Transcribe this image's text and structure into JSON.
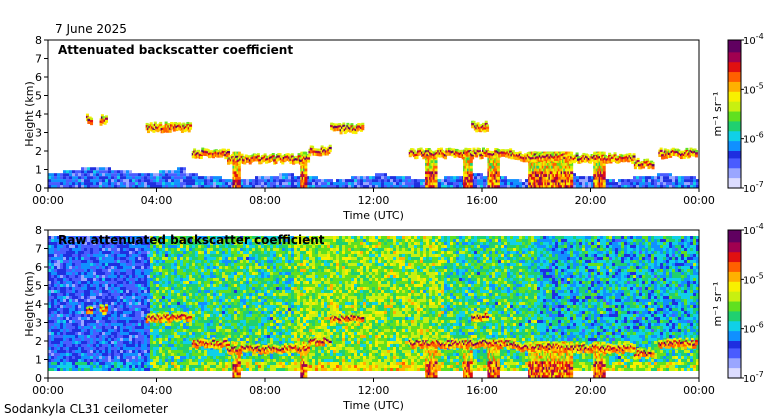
{
  "header": {
    "date": "7 June 2025"
  },
  "footer": {
    "instrument": "Sodankyla CL31 ceilometer"
  },
  "chart_data": [
    {
      "type": "heatmap",
      "title": "Attenuated backscatter coefficient",
      "xlabel": "Time (UTC)",
      "ylabel": "Height (km)",
      "x_ticks": [
        "00:00",
        "04:00",
        "08:00",
        "12:00",
        "16:00",
        "20:00",
        "00:00"
      ],
      "y_ticks": [
        "0",
        "1",
        "2",
        "3",
        "4",
        "5",
        "6",
        "7",
        "8"
      ],
      "xlim": [
        0,
        24
      ],
      "ylim": [
        0,
        8
      ],
      "colorbar": {
        "label": "m⁻¹ sr⁻¹",
        "scale": "log",
        "ticks": [
          {
            "base": "10",
            "exp": "-4"
          },
          {
            "base": "10",
            "exp": "-5"
          },
          {
            "base": "10",
            "exp": "-6"
          },
          {
            "base": "10",
            "exp": "-7"
          }
        ]
      },
      "cloud_layers": [
        {
          "t0": 1.4,
          "t1": 1.6,
          "h": 3.8
        },
        {
          "t0": 1.9,
          "t1": 2.1,
          "h": 3.75
        },
        {
          "t0": 3.6,
          "t1": 5.2,
          "h": 3.35
        },
        {
          "t0": 5.3,
          "t1": 6.6,
          "h": 1.95
        },
        {
          "t0": 6.6,
          "t1": 9.6,
          "h": 1.65
        },
        {
          "t0": 9.6,
          "t1": 10.4,
          "h": 2.1
        },
        {
          "t0": 10.4,
          "t1": 11.6,
          "h": 3.3
        },
        {
          "t0": 13.3,
          "t1": 17.2,
          "h": 1.95
        },
        {
          "t0": 15.6,
          "t1": 16.2,
          "h": 3.4
        },
        {
          "t0": 17.2,
          "t1": 19.2,
          "h": 1.75
        },
        {
          "t0": 19.2,
          "t1": 21.6,
          "h": 1.7
        },
        {
          "t0": 21.6,
          "t1": 22.3,
          "h": 1.4
        },
        {
          "t0": 22.5,
          "t1": 23.9,
          "h": 1.95
        }
      ],
      "precipitation_shafts": [
        {
          "t0": 6.8,
          "t1": 7.0
        },
        {
          "t0": 9.3,
          "t1": 9.5
        },
        {
          "t0": 13.9,
          "t1": 14.3
        },
        {
          "t0": 15.3,
          "t1": 15.6
        },
        {
          "t0": 16.2,
          "t1": 16.6
        },
        {
          "t0": 17.7,
          "t1": 19.3
        },
        {
          "t0": 20.1,
          "t1": 20.5
        }
      ]
    },
    {
      "type": "heatmap",
      "title": "Raw attenuated backscatter coefficient",
      "xlabel": "Time (UTC)",
      "ylabel": "Height (km)",
      "x_ticks": [
        "00:00",
        "04:00",
        "08:00",
        "12:00",
        "16:00",
        "20:00",
        "00:00"
      ],
      "y_ticks": [
        "0",
        "1",
        "2",
        "3",
        "4",
        "5",
        "6",
        "7",
        "8"
      ],
      "xlim": [
        0,
        24
      ],
      "ylim": [
        0,
        8
      ],
      "colorbar": {
        "label": "m⁻¹ sr⁻¹",
        "scale": "log",
        "ticks": [
          {
            "base": "10",
            "exp": "-4"
          },
          {
            "base": "10",
            "exp": "-5"
          },
          {
            "base": "10",
            "exp": "-6"
          },
          {
            "base": "10",
            "exp": "-7"
          }
        ]
      },
      "noise_start_time": 3.7
    }
  ]
}
